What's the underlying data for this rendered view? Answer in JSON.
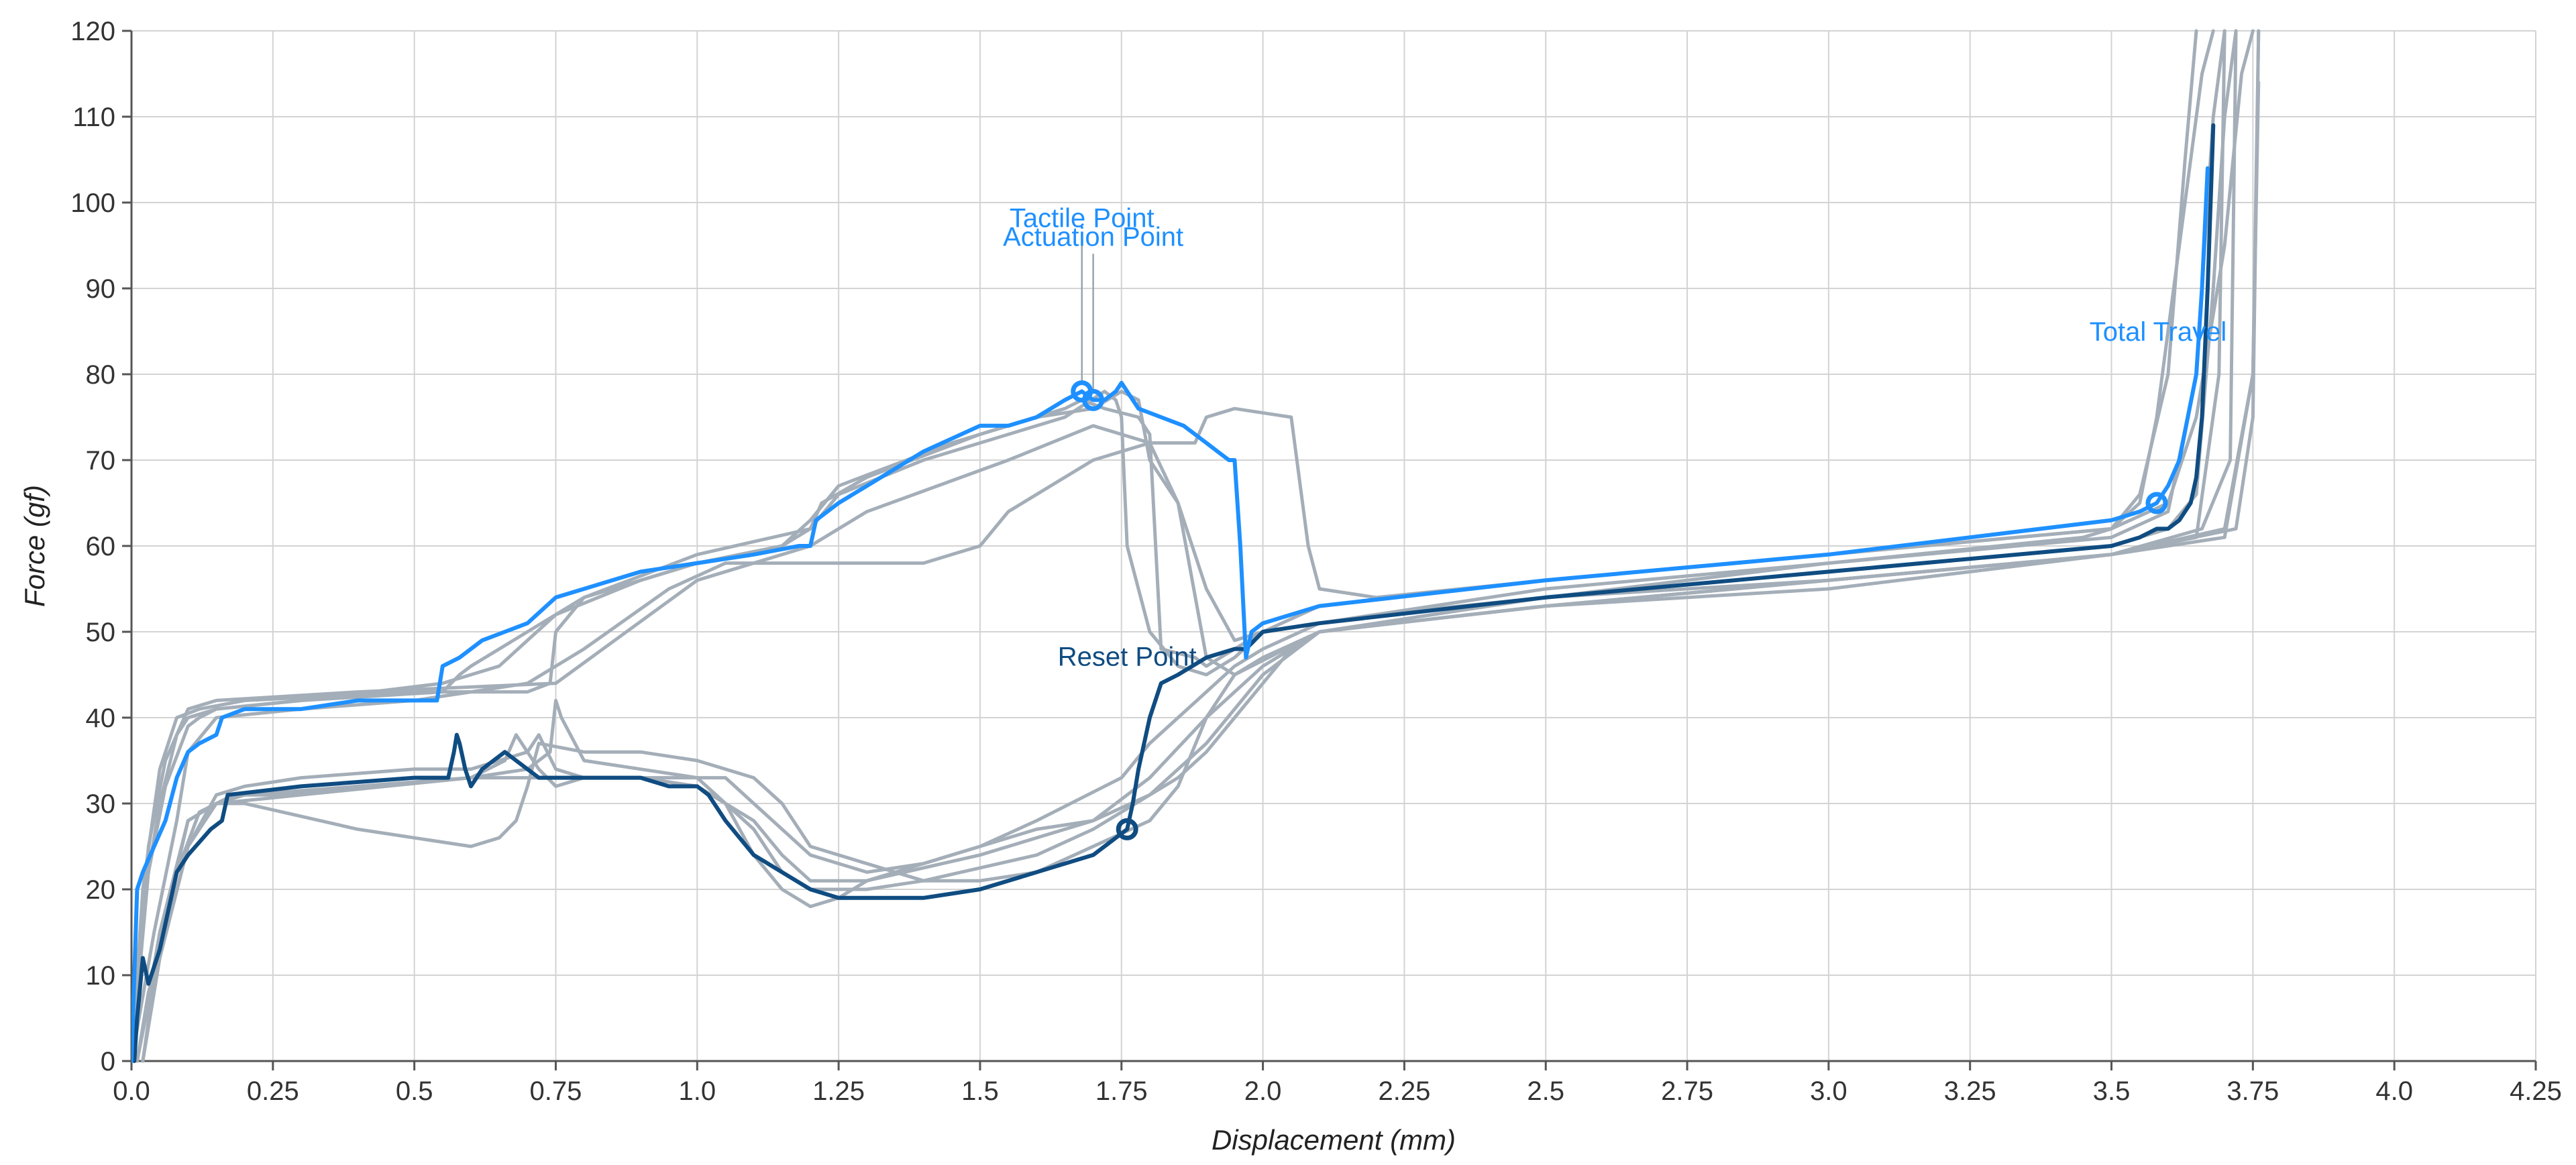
{
  "chart_data": {
    "type": "line",
    "xlabel": "Displacement (mm)",
    "ylabel": "Force (gf)",
    "xlim": [
      0,
      4.25
    ],
    "ylim": [
      0,
      120
    ],
    "xticks": [
      "0.0",
      "0.25",
      "0.5",
      "0.75",
      "1.0",
      "1.25",
      "1.5",
      "1.75",
      "2.0",
      "2.25",
      "2.5",
      "2.75",
      "3.0",
      "3.25",
      "3.5",
      "3.75",
      "4.0",
      "4.25"
    ],
    "yticks": [
      "0",
      "10",
      "20",
      "30",
      "40",
      "50",
      "60",
      "70",
      "80",
      "90",
      "100",
      "110",
      "120"
    ],
    "grid": true,
    "colors": {
      "downstroke": "#1e90ff",
      "upstroke": "#0f4c81",
      "other_runs": "#a4aeb8",
      "grid": "#d3d3d3"
    },
    "series": [
      {
        "role": "other",
        "x": [
          0,
          0.02,
          0.05,
          0.08,
          0.1,
          0.15,
          0.3,
          0.55,
          0.6,
          0.65,
          0.75,
          0.9,
          1.0,
          1.15,
          1.2,
          1.22,
          1.3,
          1.5,
          1.6,
          1.65,
          1.68,
          1.72,
          1.78,
          1.8,
          1.82,
          1.88,
          1.9,
          1.95,
          2.0,
          2.1,
          2.5,
          3.0,
          3.5,
          3.55,
          3.58,
          3.62,
          3.66,
          3.68
        ],
        "y": [
          0,
          18,
          30,
          38,
          40,
          41,
          42,
          44,
          45,
          46,
          52,
          56,
          58,
          60,
          62,
          65,
          68,
          73,
          75,
          76,
          77,
          76,
          75,
          73,
          48,
          47,
          46,
          48,
          50,
          53,
          56,
          59,
          62,
          65,
          75,
          95,
          115,
          120
        ]
      },
      {
        "role": "other",
        "x": [
          0,
          0.03,
          0.06,
          0.1,
          0.12,
          0.15,
          0.3,
          0.55,
          0.58,
          0.6,
          0.8,
          1.0,
          1.2,
          1.25,
          1.4,
          1.55,
          1.65,
          1.72,
          1.74,
          1.75,
          1.76,
          1.8,
          1.85,
          1.9,
          1.95,
          2.0,
          2.5,
          3.0,
          3.45,
          3.5,
          3.55,
          3.6,
          3.63,
          3.65
        ],
        "y": [
          0,
          22,
          32,
          39,
          40,
          41,
          42,
          43,
          45,
          46,
          54,
          59,
          62,
          66,
          70,
          73,
          75,
          78,
          77,
          75,
          60,
          50,
          46,
          45,
          47,
          50,
          55,
          58,
          61,
          62,
          66,
          80,
          105,
          120
        ]
      },
      {
        "role": "other",
        "x": [
          0,
          0.04,
          0.08,
          0.1,
          0.15,
          0.3,
          0.5,
          0.6,
          0.7,
          0.8,
          0.95,
          1.05,
          1.15,
          1.3,
          1.4,
          1.5,
          1.55,
          1.7,
          1.8,
          1.88,
          1.9,
          1.95,
          2.05,
          2.08,
          2.1,
          2.2,
          2.5,
          3.0,
          3.5,
          3.6,
          3.65,
          3.7,
          3.73,
          3.75
        ],
        "y": [
          0,
          15,
          28,
          36,
          40,
          41,
          42,
          43,
          44,
          48,
          55,
          58,
          58,
          58,
          58,
          60,
          64,
          70,
          72,
          72,
          75,
          76,
          75,
          60,
          55,
          54,
          56,
          59,
          62,
          65,
          75,
          95,
          115,
          120
        ]
      },
      {
        "role": "other",
        "x": [
          0,
          0.02,
          0.05,
          0.08,
          0.12,
          0.2,
          0.5,
          0.7,
          0.74,
          0.75,
          0.8,
          1.0,
          1.15,
          1.2,
          1.25,
          1.45,
          1.6,
          1.7,
          1.75,
          1.78,
          1.8,
          1.85,
          1.9,
          1.95,
          2.0,
          2.2,
          2.5,
          3.0,
          3.5,
          3.6,
          3.65,
          3.68,
          3.7,
          3.72
        ],
        "y": [
          0,
          20,
          34,
          40,
          41,
          42,
          43,
          43,
          44,
          50,
          54,
          58,
          60,
          63,
          67,
          72,
          75,
          76,
          78,
          77,
          70,
          65,
          55,
          49,
          50,
          52,
          54,
          57,
          60,
          62,
          66,
          90,
          110,
          120
        ]
      },
      {
        "role": "other",
        "x": [
          0,
          0.03,
          0.06,
          0.1,
          0.15,
          0.4,
          0.75,
          1.0,
          1.2,
          1.3,
          1.55,
          1.7,
          1.8,
          1.85,
          1.9,
          1.95,
          2.1,
          2.5,
          3.0,
          3.5,
          3.6,
          3.65,
          3.68,
          3.7
        ],
        "y": [
          0,
          25,
          35,
          41,
          42,
          43,
          44,
          56,
          60,
          64,
          70,
          74,
          72,
          65,
          47,
          45,
          50,
          54,
          58,
          61,
          64,
          80,
          110,
          120
        ]
      },
      {
        "role": "other",
        "x": [
          3.76,
          3.75,
          3.7,
          3.5,
          3.0,
          2.5,
          2.1,
          2.05,
          2.0,
          1.95,
          1.9,
          1.85,
          1.8,
          1.7,
          1.6,
          1.5,
          1.4,
          1.3,
          1.2,
          1.15,
          1.1,
          1.05,
          1.0,
          0.9,
          0.8,
          0.75,
          0.72,
          0.7,
          0.65,
          0.6,
          0.5,
          0.3,
          0.2,
          0.15,
          0.1,
          0.06,
          0.03,
          0.01
        ],
        "y": [
          114,
          80,
          62,
          59,
          56,
          53,
          50,
          48,
          44,
          40,
          36,
          33,
          31,
          28,
          27,
          25,
          23,
          22,
          24,
          27,
          30,
          33,
          33,
          33,
          33,
          34,
          38,
          36,
          35,
          34,
          34,
          33,
          32,
          31,
          25,
          15,
          8,
          0
        ]
      },
      {
        "role": "other",
        "x": [
          3.7,
          3.69,
          3.65,
          3.5,
          3.0,
          2.5,
          2.1,
          2.0,
          1.95,
          1.9,
          1.85,
          1.8,
          1.75,
          1.6,
          1.5,
          1.4,
          1.3,
          1.2,
          1.15,
          1.1,
          1.05,
          1.0,
          0.9,
          0.8,
          0.76,
          0.75,
          0.74,
          0.7,
          0.6,
          0.4,
          0.2,
          0.15,
          0.1,
          0.05,
          0.02
        ],
        "y": [
          120,
          80,
          61,
          59,
          56,
          54,
          51,
          48,
          46,
          43,
          40,
          37,
          33,
          28,
          25,
          23,
          21,
          21,
          24,
          28,
          30,
          33,
          34,
          35,
          40,
          42,
          36,
          34,
          33,
          32,
          31,
          30,
          25,
          12,
          0
        ]
      },
      {
        "role": "other",
        "x": [
          3.72,
          3.71,
          3.66,
          3.5,
          3.0,
          2.5,
          2.1,
          2.0,
          1.9,
          1.8,
          1.7,
          1.6,
          1.4,
          1.3,
          1.2,
          1.15,
          1.1,
          1.05,
          1.0,
          0.9,
          0.8,
          0.75,
          0.72,
          0.7,
          0.68,
          0.66,
          0.6,
          0.4,
          0.25,
          0.18,
          0.12,
          0.08,
          0.04,
          0.01
        ],
        "y": [
          120,
          70,
          62,
          59,
          56,
          53,
          50,
          45,
          37,
          31,
          27,
          24,
          21,
          20,
          20,
          22,
          27,
          30,
          32,
          33,
          33,
          32,
          34,
          36,
          38,
          35,
          33,
          32,
          31,
          31,
          29,
          22,
          10,
          0
        ]
      },
      {
        "role": "other",
        "x": [
          3.76,
          3.75,
          3.72,
          3.5,
          3.0,
          2.5,
          2.1,
          2.0,
          1.95,
          1.9,
          1.85,
          1.8,
          1.6,
          1.5,
          1.4,
          1.2,
          1.15,
          1.1,
          1.05,
          1.0,
          0.9,
          0.8,
          0.72,
          0.7,
          0.68,
          0.65,
          0.6,
          0.4,
          0.2,
          0.15,
          0.1,
          0.05,
          0.02
        ],
        "y": [
          120,
          75,
          62,
          59,
          56,
          53,
          50,
          47,
          45,
          40,
          32,
          28,
          22,
          21,
          21,
          25,
          30,
          33,
          34,
          35,
          36,
          36,
          37,
          32,
          28,
          26,
          25,
          27,
          30,
          30,
          28,
          14,
          0
        ]
      },
      {
        "role": "other",
        "x": [
          3.76,
          3.75,
          3.7,
          3.5,
          3.0,
          2.5,
          2.1,
          2.0,
          1.9,
          1.8,
          1.7,
          1.5,
          1.3,
          1.25,
          1.2,
          1.15,
          1.1,
          1.05,
          1.0,
          0.9,
          0.8,
          0.7,
          0.6,
          0.45,
          0.3,
          0.15,
          0.1,
          0.05,
          0.01
        ],
        "y": [
          120,
          80,
          61,
          59,
          55,
          53,
          50,
          46,
          40,
          33,
          28,
          24,
          21,
          19,
          18,
          20,
          24,
          30,
          32,
          33,
          33,
          33,
          33,
          32,
          31,
          30,
          28,
          15,
          0
        ]
      },
      {
        "role": "downstroke",
        "x": [
          0,
          0.01,
          0.02,
          0.04,
          0.06,
          0.08,
          0.1,
          0.12,
          0.15,
          0.16,
          0.2,
          0.3,
          0.4,
          0.5,
          0.54,
          0.55,
          0.58,
          0.62,
          0.66,
          0.7,
          0.75,
          0.8,
          0.9,
          1.0,
          1.1,
          1.18,
          1.2,
          1.21,
          1.25,
          1.3,
          1.4,
          1.5,
          1.55,
          1.6,
          1.65,
          1.68,
          1.7,
          1.72,
          1.74,
          1.75,
          1.78,
          1.82,
          1.86,
          1.9,
          1.92,
          1.94,
          1.95,
          1.96,
          1.97,
          1.98,
          2.0,
          2.1,
          2.5,
          3.0,
          3.5,
          3.55,
          3.58,
          3.6,
          3.62,
          3.65,
          3.66,
          3.67
        ],
        "y": [
          0,
          20,
          22,
          25,
          28,
          33,
          36,
          37,
          38,
          40,
          41,
          41,
          42,
          42,
          42,
          46,
          47,
          49,
          50,
          51,
          54,
          55,
          57,
          58,
          59,
          60,
          60,
          63,
          65,
          67,
          71,
          74,
          74,
          75,
          77,
          78,
          77,
          77,
          78,
          79,
          76,
          75,
          74,
          72,
          71,
          70,
          70,
          60,
          47,
          50,
          51,
          53,
          56,
          59,
          63,
          64,
          65,
          67,
          70,
          80,
          90,
          104
        ]
      },
      {
        "role": "upstroke",
        "x": [
          3.68,
          3.67,
          3.66,
          3.65,
          3.64,
          3.62,
          3.6,
          3.58,
          3.55,
          3.5,
          3.0,
          2.5,
          2.1,
          2.0,
          1.97,
          1.95,
          1.9,
          1.85,
          1.82,
          1.8,
          1.78,
          1.77,
          1.76,
          1.7,
          1.6,
          1.5,
          1.4,
          1.3,
          1.25,
          1.2,
          1.15,
          1.1,
          1.05,
          1.02,
          1.0,
          0.95,
          0.9,
          0.8,
          0.72,
          0.7,
          0.68,
          0.66,
          0.62,
          0.6,
          0.59,
          0.58,
          0.575,
          0.57,
          0.56,
          0.5,
          0.3,
          0.17,
          0.16,
          0.14,
          0.1,
          0.08,
          0.06,
          0.05,
          0.03,
          0.02,
          0.01,
          0.005
        ],
        "y": [
          109,
          90,
          75,
          68,
          65,
          63,
          62,
          62,
          61,
          60,
          57,
          54,
          51,
          50,
          48,
          48,
          47,
          45,
          44,
          40,
          34,
          30,
          27,
          24,
          22,
          20,
          19,
          19,
          19,
          20,
          22,
          24,
          28,
          31,
          32,
          32,
          33,
          33,
          33,
          34,
          35,
          36,
          34,
          32,
          34,
          37,
          38,
          36,
          33,
          33,
          32,
          31,
          28,
          27,
          24,
          22,
          16,
          13,
          9,
          12,
          5,
          0
        ]
      }
    ],
    "annotations": [
      {
        "label": "Tactile Point",
        "x": 1.68,
        "y": 78,
        "color": "#1e90ff"
      },
      {
        "label": "Actuation Point",
        "x": 1.7,
        "y": 77,
        "color": "#1e90ff"
      },
      {
        "label": "Total Travel",
        "x": 3.58,
        "y": 65,
        "color": "#1e90ff"
      },
      {
        "label": "Reset Point",
        "x": 1.76,
        "y": 27,
        "color": "#0f4c81"
      }
    ]
  }
}
